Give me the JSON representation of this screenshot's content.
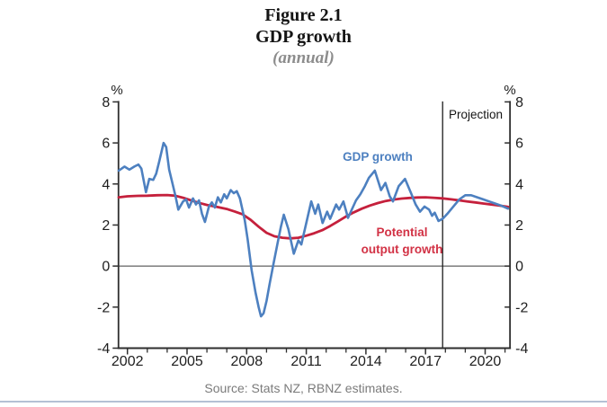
{
  "title": "Figure 2.1",
  "subtitle": "GDP growth",
  "frequency_note": "(annual)",
  "source": "Source: Stats NZ, RBNZ estimates.",
  "colors": {
    "gdp_line": "#4d80c0",
    "potential_line": "#c5203c",
    "potential_label": "#d23245",
    "axis": "#2e2e2e",
    "tick_text": "#1e1e1e",
    "muted_text": "#7b7b7b",
    "bottom_divider": "#b4c1d4"
  },
  "chart_data": {
    "type": "line",
    "title": "Figure 2.1",
    "subtitle": "GDP growth",
    "frequency": "(annual)",
    "unit_left": "%",
    "unit_right": "%",
    "ylim": [
      -4,
      8
    ],
    "xlim": [
      2001.55,
      2021.25
    ],
    "y_ticks": [
      8,
      6,
      4,
      2,
      0,
      -2,
      -4
    ],
    "x_ticks_labeled": [
      2002,
      2005,
      2008,
      2011,
      2014,
      2017,
      2020
    ],
    "x_ticks_minor": [
      2003,
      2004,
      2006,
      2007,
      2009,
      2010,
      2012,
      2013,
      2015,
      2016,
      2018,
      2019,
      2021
    ],
    "grid": false,
    "zero_line": true,
    "projection_divider_x": 2017.86,
    "annotations": {
      "projection": "Projection",
      "gdp_label": "GDP growth",
      "potential_label_line1": "Potential",
      "potential_label_line2": "output growth"
    },
    "series": [
      {
        "name": "GDP growth",
        "color": "#4d80c0",
        "points": [
          [
            2001.56,
            4.65
          ],
          [
            2001.85,
            4.85
          ],
          [
            2002.1,
            4.7
          ],
          [
            2002.35,
            4.85
          ],
          [
            2002.55,
            4.95
          ],
          [
            2002.7,
            4.75
          ],
          [
            2002.93,
            3.6
          ],
          [
            2003.1,
            4.25
          ],
          [
            2003.3,
            4.2
          ],
          [
            2003.45,
            4.5
          ],
          [
            2003.6,
            5.1
          ],
          [
            2003.82,
            6.0
          ],
          [
            2003.95,
            5.8
          ],
          [
            2004.1,
            4.7
          ],
          [
            2004.25,
            4.1
          ],
          [
            2004.42,
            3.4
          ],
          [
            2004.56,
            2.75
          ],
          [
            2004.8,
            3.15
          ],
          [
            2004.95,
            3.25
          ],
          [
            2005.1,
            2.85
          ],
          [
            2005.3,
            3.3
          ],
          [
            2005.45,
            3.0
          ],
          [
            2005.6,
            3.2
          ],
          [
            2005.75,
            2.55
          ],
          [
            2005.9,
            2.15
          ],
          [
            2006.1,
            2.9
          ],
          [
            2006.25,
            3.1
          ],
          [
            2006.4,
            2.85
          ],
          [
            2006.55,
            3.35
          ],
          [
            2006.7,
            3.1
          ],
          [
            2006.87,
            3.5
          ],
          [
            2007.0,
            3.3
          ],
          [
            2007.2,
            3.7
          ],
          [
            2007.35,
            3.55
          ],
          [
            2007.5,
            3.65
          ],
          [
            2007.66,
            3.3
          ],
          [
            2007.9,
            2.25
          ],
          [
            2008.05,
            1.3
          ],
          [
            2008.25,
            -0.2
          ],
          [
            2008.45,
            -1.3
          ],
          [
            2008.6,
            -2.0
          ],
          [
            2008.72,
            -2.45
          ],
          [
            2008.85,
            -2.3
          ],
          [
            2009.0,
            -1.7
          ],
          [
            2009.15,
            -0.9
          ],
          [
            2009.35,
            0.1
          ],
          [
            2009.55,
            1.1
          ],
          [
            2009.72,
            1.9
          ],
          [
            2009.87,
            2.5
          ],
          [
            2010.1,
            1.8
          ],
          [
            2010.37,
            0.6
          ],
          [
            2010.6,
            1.25
          ],
          [
            2010.75,
            1.05
          ],
          [
            2011.0,
            2.1
          ],
          [
            2011.25,
            3.15
          ],
          [
            2011.45,
            2.55
          ],
          [
            2011.6,
            3.0
          ],
          [
            2011.82,
            2.1
          ],
          [
            2012.05,
            2.65
          ],
          [
            2012.2,
            2.3
          ],
          [
            2012.5,
            3.0
          ],
          [
            2012.65,
            2.75
          ],
          [
            2012.87,
            3.15
          ],
          [
            2013.1,
            2.35
          ],
          [
            2013.5,
            3.2
          ],
          [
            2013.72,
            3.5
          ],
          [
            2013.95,
            3.9
          ],
          [
            2014.15,
            4.3
          ],
          [
            2014.45,
            4.65
          ],
          [
            2014.76,
            3.7
          ],
          [
            2014.98,
            4.05
          ],
          [
            2015.2,
            3.4
          ],
          [
            2015.36,
            3.15
          ],
          [
            2015.65,
            3.9
          ],
          [
            2015.97,
            4.25
          ],
          [
            2016.27,
            3.55
          ],
          [
            2016.5,
            3.0
          ],
          [
            2016.72,
            2.65
          ],
          [
            2016.95,
            2.9
          ],
          [
            2017.18,
            2.75
          ],
          [
            2017.33,
            2.45
          ],
          [
            2017.46,
            2.6
          ],
          [
            2017.65,
            2.2
          ],
          [
            2017.86,
            2.3
          ],
          [
            2018.1,
            2.55
          ],
          [
            2018.4,
            2.9
          ],
          [
            2018.7,
            3.25
          ],
          [
            2019.0,
            3.45
          ],
          [
            2019.3,
            3.45
          ],
          [
            2019.6,
            3.35
          ],
          [
            2019.9,
            3.25
          ],
          [
            2020.2,
            3.15
          ],
          [
            2020.5,
            3.05
          ],
          [
            2020.8,
            2.95
          ],
          [
            2021.15,
            2.8
          ]
        ]
      },
      {
        "name": "Potential output growth",
        "color": "#c5203c",
        "points": [
          [
            2001.56,
            3.35
          ],
          [
            2002.0,
            3.4
          ],
          [
            2002.5,
            3.42
          ],
          [
            2003.0,
            3.43
          ],
          [
            2003.5,
            3.45
          ],
          [
            2004.0,
            3.46
          ],
          [
            2004.4,
            3.43
          ],
          [
            2004.8,
            3.33
          ],
          [
            2005.2,
            3.2
          ],
          [
            2005.6,
            3.08
          ],
          [
            2006.0,
            2.98
          ],
          [
            2006.5,
            2.88
          ],
          [
            2007.0,
            2.78
          ],
          [
            2007.4,
            2.66
          ],
          [
            2007.8,
            2.52
          ],
          [
            2008.2,
            2.25
          ],
          [
            2008.6,
            1.92
          ],
          [
            2009.0,
            1.62
          ],
          [
            2009.4,
            1.45
          ],
          [
            2009.8,
            1.38
          ],
          [
            2010.2,
            1.35
          ],
          [
            2010.6,
            1.38
          ],
          [
            2011.0,
            1.48
          ],
          [
            2011.4,
            1.6
          ],
          [
            2011.8,
            1.75
          ],
          [
            2012.2,
            1.95
          ],
          [
            2012.6,
            2.18
          ],
          [
            2013.0,
            2.42
          ],
          [
            2013.4,
            2.62
          ],
          [
            2013.8,
            2.8
          ],
          [
            2014.2,
            2.95
          ],
          [
            2014.6,
            3.07
          ],
          [
            2015.0,
            3.17
          ],
          [
            2015.4,
            3.24
          ],
          [
            2015.8,
            3.29
          ],
          [
            2016.2,
            3.32
          ],
          [
            2016.6,
            3.34
          ],
          [
            2017.0,
            3.35
          ],
          [
            2017.4,
            3.33
          ],
          [
            2017.86,
            3.3
          ],
          [
            2018.3,
            3.25
          ],
          [
            2018.7,
            3.2
          ],
          [
            2019.1,
            3.15
          ],
          [
            2019.5,
            3.1
          ],
          [
            2019.9,
            3.05
          ],
          [
            2020.3,
            3.0
          ],
          [
            2020.7,
            2.95
          ],
          [
            2021.15,
            2.88
          ]
        ]
      }
    ]
  }
}
